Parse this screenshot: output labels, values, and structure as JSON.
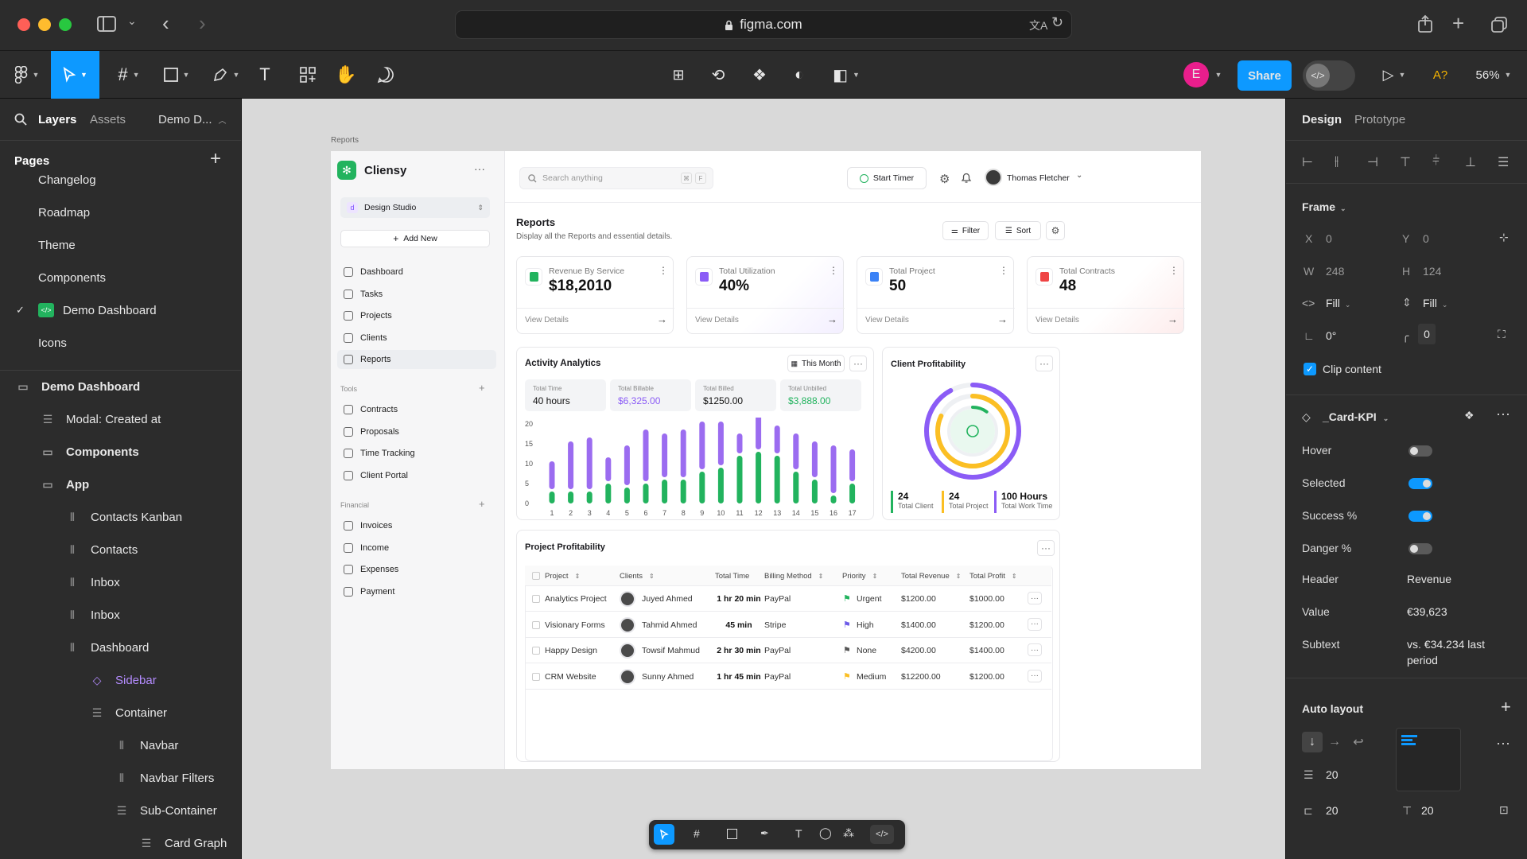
{
  "browser": {
    "url": "figma.com"
  },
  "toolbar": {
    "share": "Share",
    "avatar": "E",
    "zoom": "56%",
    "a_label": "A?"
  },
  "left": {
    "tabs": {
      "layers": "Layers",
      "assets": "Assets",
      "file": "Demo D..."
    },
    "pages_title": "Pages",
    "pages": [
      "Changelog",
      "Roadmap",
      "Theme",
      "Components",
      "Demo Dashboard",
      "Icons"
    ],
    "layers": [
      {
        "label": "Demo Dashboard",
        "indent": 0,
        "bold": true,
        "icon": "frame-icon"
      },
      {
        "label": "Modal: Created at",
        "indent": 1,
        "icon": "list-icon"
      },
      {
        "label": "Components",
        "indent": 1,
        "bold": true,
        "icon": "frame-icon"
      },
      {
        "label": "App",
        "indent": 1,
        "bold": true,
        "icon": "frame-icon"
      },
      {
        "label": "Contacts Kanban",
        "indent": 2,
        "icon": "columns-icon"
      },
      {
        "label": "Contacts",
        "indent": 2,
        "icon": "columns-icon"
      },
      {
        "label": "Inbox",
        "indent": 2,
        "icon": "columns-icon"
      },
      {
        "label": "Inbox",
        "indent": 2,
        "icon": "columns-icon"
      },
      {
        "label": "Dashboard",
        "indent": 2,
        "icon": "columns-icon"
      },
      {
        "label": "Sidebar",
        "indent": 3,
        "purple": true,
        "icon": "component-icon"
      },
      {
        "label": "Container",
        "indent": 3,
        "icon": "list-icon"
      },
      {
        "label": "Navbar",
        "indent": 4,
        "icon": "columns-icon"
      },
      {
        "label": "Navbar Filters",
        "indent": 4,
        "icon": "columns-icon"
      },
      {
        "label": "Sub-Container",
        "indent": 4,
        "icon": "list-icon"
      },
      {
        "label": "Card Graph",
        "indent": 5,
        "icon": "list-icon"
      }
    ]
  },
  "canvas": {
    "frame_label": "Reports"
  },
  "app": {
    "brand": "Cliensy",
    "workspace": "Design Studio",
    "add_new": "Add New",
    "nav": [
      "Dashboard",
      "Tasks",
      "Projects",
      "Clients",
      "Reports"
    ],
    "tools_title": "Tools",
    "tools": [
      "Contracts",
      "Proposals",
      "Time Tracking",
      "Client Portal"
    ],
    "financial_title": "Financial",
    "financial": [
      "Invoices",
      "Income",
      "Expenses",
      "Payment"
    ],
    "search_placeholder": "Search anything",
    "kbd": [
      "⌘",
      "F"
    ],
    "start_timer": "Start Timer",
    "user": "Thomas Fletcher",
    "page_title": "Reports",
    "page_subtitle": "Display all the Reports and essential details.",
    "filter": "Filter",
    "sort": "Sort",
    "kpis": [
      {
        "label": "Revenue By Service",
        "value": "$18,2010",
        "link": "View Details",
        "color": "#22b35e"
      },
      {
        "label": "Total Utilization",
        "value": "40%",
        "link": "View Details",
        "color": "#8b5cf6"
      },
      {
        "label": "Total Project",
        "value": "50",
        "link": "View Details",
        "color": "#3b82f6"
      },
      {
        "label": "Total Contracts",
        "value": "48",
        "link": "View Details",
        "color": "#ef4444"
      }
    ],
    "activity": {
      "title": "Activity Analytics",
      "period": "This Month",
      "stats": [
        {
          "label": "Total Time",
          "value": "40 hours",
          "color": "#111111"
        },
        {
          "label": "Total Billable",
          "value": "$6,325.00",
          "color": "#8b5cf6"
        },
        {
          "label": "Total Billed",
          "value": "$1250.00",
          "color": "#111111"
        },
        {
          "label": "Total Unbilled",
          "value": "$3,888.00",
          "color": "#22b35e"
        }
      ]
    },
    "profitability": {
      "title": "Client Profitability",
      "stats": [
        {
          "value": "24",
          "label": "Total Client",
          "color": "#22b35e"
        },
        {
          "value": "24",
          "label": "Total Project",
          "color": "#fbbf24"
        },
        {
          "value": "100 Hours",
          "label": "Total Work Time",
          "color": "#8b5cf6"
        }
      ]
    },
    "project_table": {
      "title": "Project Profitability",
      "headers": [
        "Project",
        "Clients",
        "Total Time",
        "Billing Method",
        "Priority",
        "Total Revenue",
        "Total Profit"
      ],
      "rows": [
        {
          "project": "Analytics Project",
          "client": "Juyed Ahmed",
          "time": "1 hr 20 min",
          "method": "PayPal",
          "priority": "Urgent",
          "pcolor": "#22b35e",
          "revenue": "$1200.00",
          "profit": "$1000.00"
        },
        {
          "project": "Visionary Forms",
          "client": "Tahmid Ahmed",
          "time": "45 min",
          "method": "Stripe",
          "priority": "High",
          "pcolor": "#6d5ce8",
          "revenue": "$1400.00",
          "profit": "$1200.00"
        },
        {
          "project": "Happy Design",
          "client": "Towsif Mahmud",
          "time": "2 hr 30 min",
          "method": "PayPal",
          "priority": "None",
          "pcolor": "#555555",
          "revenue": "$4200.00",
          "profit": "$1400.00"
        },
        {
          "project": "CRM Website",
          "client": "Sunny Ahmed",
          "time": "1 hr 45 min",
          "method": "PayPal",
          "priority": "Medium",
          "pcolor": "#fbbf24",
          "revenue": "$12200.00",
          "profit": "$1200.00"
        }
      ]
    }
  },
  "chart_data": {
    "type": "bar",
    "categories": [
      "1",
      "2",
      "3",
      "4",
      "5",
      "6",
      "7",
      "8",
      "9",
      "10",
      "11",
      "12",
      "13",
      "14",
      "15",
      "16",
      "17"
    ],
    "yticks": [
      "20",
      "15",
      "10",
      "5",
      "0"
    ],
    "ylim": [
      0,
      20
    ],
    "series": [
      {
        "values": [
          3,
          3,
          3,
          5,
          4,
          5,
          6,
          6,
          8,
          9,
          12,
          13,
          12,
          8,
          6,
          2,
          5
        ],
        "color": "#22b35e"
      },
      {
        "values": [
          7,
          12,
          13,
          6,
          10,
          13,
          11,
          12,
          12,
          11,
          5,
          9,
          7,
          9,
          9,
          12,
          8
        ],
        "color": "#9b6cf0"
      }
    ],
    "stacked": true
  },
  "donut": {
    "rings": [
      {
        "fraction": 0.92,
        "color": "#8b5cf6"
      },
      {
        "fraction": 0.82,
        "color": "#fbbf24"
      },
      {
        "fraction": 0.1,
        "color": "#22b35e"
      }
    ]
  },
  "right": {
    "tabs": {
      "design": "Design",
      "prototype": "Prototype"
    },
    "frame_title": "Frame",
    "x": "X",
    "x_val": "0",
    "y": "Y",
    "y_val": "0",
    "w": "W",
    "w_val": "248",
    "h": "H",
    "h_val": "124",
    "fill1": "Fill",
    "fill2": "Fill",
    "rotation": "0°",
    "radius": "0",
    "clip": "Clip content",
    "component": "_Card-KPI",
    "props": [
      {
        "label": "Hover",
        "on": false
      },
      {
        "label": "Selected",
        "on": true
      },
      {
        "label": "Success %",
        "on": true
      },
      {
        "label": "Danger %",
        "on": false
      }
    ],
    "header_label": "Header",
    "header_val": "Revenue",
    "value_label": "Value",
    "value_val": "€39,623",
    "subtext_label": "Subtext",
    "subtext_val": "vs. €34.234 last period",
    "auto_layout": "Auto layout",
    "gap": "20",
    "pad_h": "20",
    "pad_v": "20"
  }
}
